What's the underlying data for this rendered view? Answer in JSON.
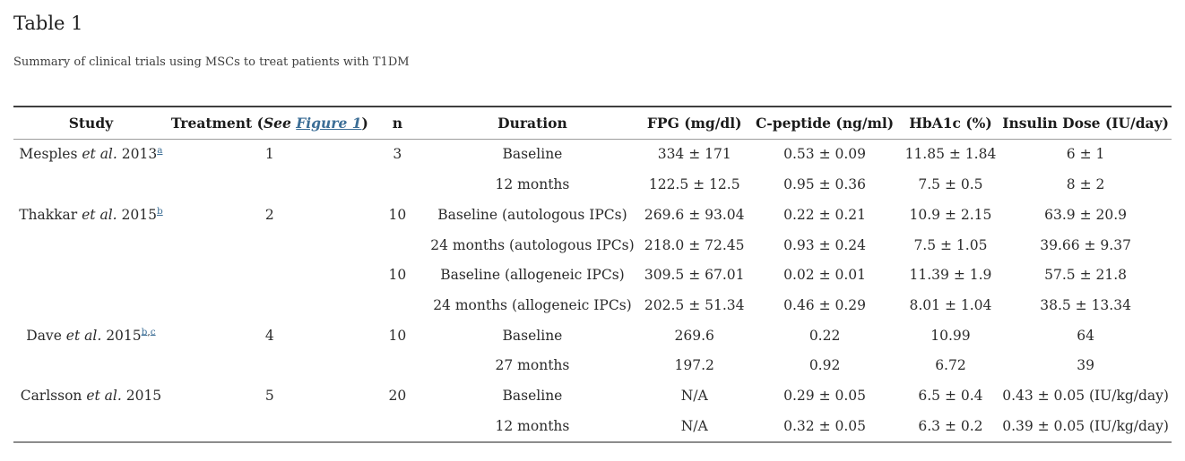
{
  "page": {
    "title": "Table 1",
    "caption": "Summary of clinical trials using MSCs to treat patients with T1DM"
  },
  "colors": {
    "link": "#3c6e96"
  },
  "table": {
    "header": {
      "study": "Study",
      "treatment_prefix": "Treatment (",
      "treatment_see": "See",
      "treatment_link": "Figure 1",
      "treatment_suffix": ")",
      "n": "n",
      "duration": "Duration",
      "fpg": "FPG (mg/dl)",
      "c_peptide": "C-peptide (ng/ml)",
      "hba1c": "HbA1c (%)",
      "insulin": "Insulin Dose (IU/day)"
    },
    "rows": [
      {
        "study": {
          "pre": "Mesples",
          "etal": "et al.",
          "year": "2013",
          "footnotes": [
            "a"
          ]
        },
        "treatment": "1",
        "n": "3",
        "duration": "Baseline",
        "fpg": "334 ± 171",
        "c_peptide": "0.53 ± 0.09",
        "hba1c": "11.85 ± 1.84",
        "insulin": "6 ± 1"
      },
      {
        "study": null,
        "treatment": "",
        "n": "",
        "duration": "12 months",
        "fpg": "122.5 ± 12.5",
        "c_peptide": "0.95 ± 0.36",
        "hba1c": "7.5 ± 0.5",
        "insulin": "8 ± 2"
      },
      {
        "study": {
          "pre": "Thakkar",
          "etal": "et al.",
          "year": "2015",
          "footnotes": [
            "b"
          ]
        },
        "treatment": "2",
        "n": "10",
        "duration": "Baseline (autologous IPCs)",
        "fpg": "269.6 ± 93.04",
        "c_peptide": "0.22 ± 0.21",
        "hba1c": "10.9 ± 2.15",
        "insulin": "63.9 ± 20.9"
      },
      {
        "study": null,
        "treatment": "",
        "n": "",
        "duration": "24 months (autologous IPCs)",
        "fpg": "218.0 ± 72.45",
        "c_peptide": "0.93 ± 0.24",
        "hba1c": "7.5 ± 1.05",
        "insulin": "39.66 ± 9.37"
      },
      {
        "study": null,
        "treatment": "",
        "n": "10",
        "duration": "Baseline (allogeneic IPCs)",
        "fpg": "309.5 ± 67.01",
        "c_peptide": "0.02 ± 0.01",
        "hba1c": "11.39 ± 1.9",
        "insulin": "57.5 ± 21.8"
      },
      {
        "study": null,
        "treatment": "",
        "n": "",
        "duration": "24 months (allogeneic IPCs)",
        "fpg": "202.5 ± 51.34",
        "c_peptide": "0.46 ± 0.29",
        "hba1c": "8.01 ± 1.04",
        "insulin": "38.5 ± 13.34"
      },
      {
        "study": {
          "pre": "Dave",
          "etal": "et al.",
          "year": "2015",
          "footnotes": [
            "b",
            "c"
          ]
        },
        "treatment": "4",
        "n": "10",
        "duration": "Baseline",
        "fpg": "269.6",
        "c_peptide": "0.22",
        "hba1c": "10.99",
        "insulin": "64"
      },
      {
        "study": null,
        "treatment": "",
        "n": "",
        "duration": "27 months",
        "fpg": "197.2",
        "c_peptide": "0.92",
        "hba1c": "6.72",
        "insulin": "39"
      },
      {
        "study": {
          "pre": "Carlsson",
          "etal": "et al.",
          "year": "2015",
          "footnotes": []
        },
        "treatment": "5",
        "n": "20",
        "duration": "Baseline",
        "fpg": "N/A",
        "c_peptide": "0.29 ± 0.05",
        "hba1c": "6.5 ± 0.4",
        "insulin": "0.43 ± 0.05 (IU/kg/day)"
      },
      {
        "study": null,
        "treatment": "",
        "n": "",
        "duration": "12 months",
        "fpg": "N/A",
        "c_peptide": "0.32 ± 0.05",
        "hba1c": "6.3 ± 0.2",
        "insulin": "0.39 ± 0.05 (IU/kg/day)"
      }
    ]
  }
}
